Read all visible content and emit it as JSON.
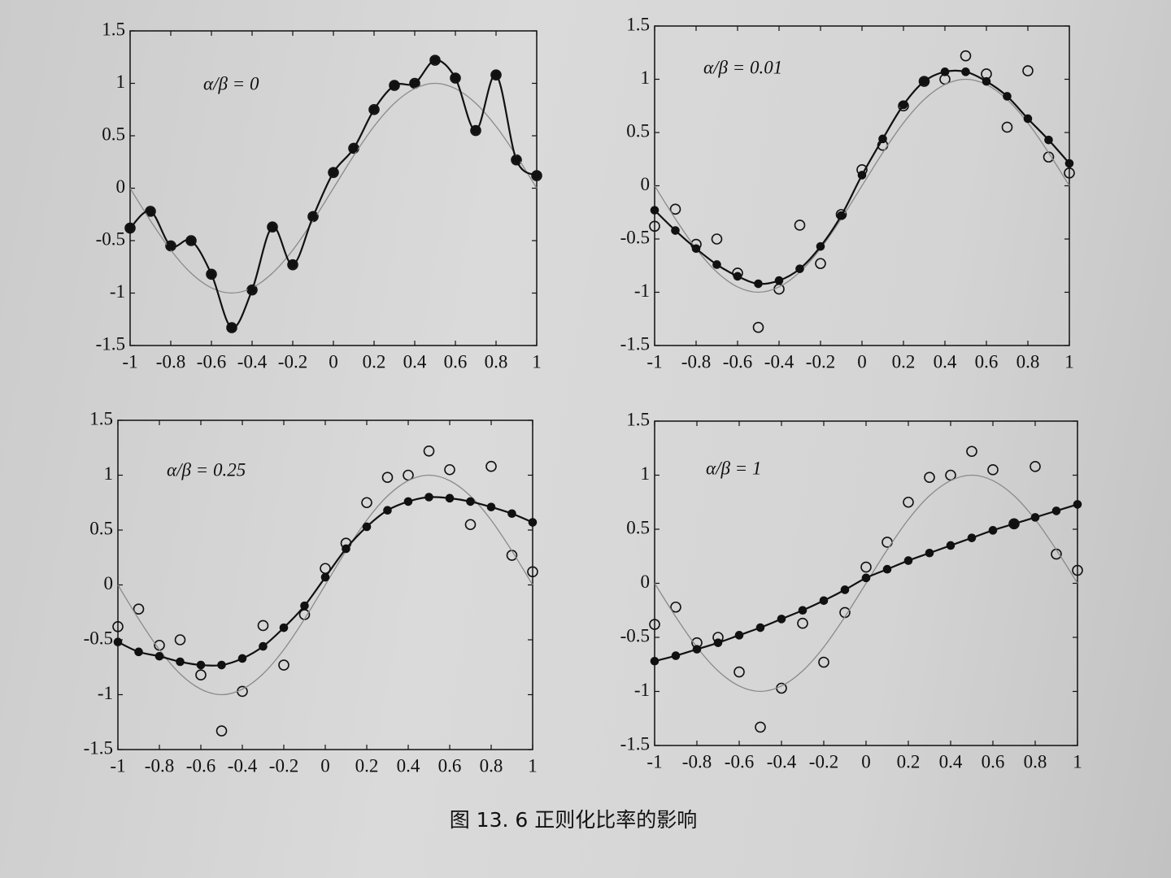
{
  "chart_data": [
    {
      "type": "line",
      "annotation": "α/β = 0",
      "x": [
        -1,
        -0.9,
        -0.8,
        -0.7,
        -0.6,
        -0.5,
        -0.4,
        -0.3,
        -0.2,
        -0.1,
        0,
        0.1,
        0.2,
        0.3,
        0.4,
        0.5,
        0.6,
        0.7,
        0.8,
        0.9,
        1
      ],
      "series": [
        {
          "color": "#111111",
          "marker": "open",
          "line": false,
          "values": [
            -0.38,
            -0.22,
            -0.55,
            -0.5,
            -0.82,
            -1.33,
            -0.97,
            -0.37,
            -0.73,
            -0.27,
            0.15,
            0.38,
            0.75,
            0.98,
            1.0,
            1.22,
            1.05,
            0.55,
            1.08,
            0.27,
            0.12
          ]
        },
        {
          "color": "#8a8a8a",
          "marker": "none",
          "line": true,
          "values": [
            0,
            -0.31,
            -0.59,
            -0.81,
            -0.95,
            -1,
            -0.95,
            -0.81,
            -0.59,
            -0.31,
            0,
            0.31,
            0.59,
            0.81,
            0.95,
            1,
            0.95,
            0.81,
            0.59,
            0.31,
            0
          ]
        },
        {
          "color": "#111111",
          "marker": "filled",
          "line": true,
          "values": [
            -0.38,
            -0.22,
            -0.55,
            -0.5,
            -0.82,
            -1.33,
            -0.97,
            -0.37,
            -0.73,
            -0.27,
            0.15,
            0.38,
            0.75,
            0.98,
            1.0,
            1.22,
            1.05,
            0.55,
            1.08,
            0.27,
            0.12
          ]
        }
      ],
      "xlim": [
        -1,
        1
      ],
      "ylim": [
        -1.5,
        1.5
      ],
      "xticks": [
        -1,
        -0.8,
        -0.6,
        -0.4,
        -0.2,
        0,
        0.2,
        0.4,
        0.6,
        0.8,
        1
      ],
      "yticks": [
        -1.5,
        -1,
        -0.5,
        0,
        0.5,
        1,
        1.5
      ]
    },
    {
      "type": "line",
      "annotation": "α/β = 0.01",
      "x": [
        -1,
        -0.9,
        -0.8,
        -0.7,
        -0.6,
        -0.5,
        -0.4,
        -0.3,
        -0.2,
        -0.1,
        0,
        0.1,
        0.2,
        0.3,
        0.4,
        0.5,
        0.6,
        0.7,
        0.8,
        0.9,
        1
      ],
      "series": [
        {
          "color": "#111111",
          "marker": "open",
          "line": false,
          "values": [
            -0.38,
            -0.22,
            -0.55,
            -0.5,
            -0.82,
            -1.33,
            -0.97,
            -0.37,
            -0.73,
            -0.27,
            0.15,
            0.38,
            0.75,
            0.98,
            1.0,
            1.22,
            1.05,
            0.55,
            1.08,
            0.27,
            0.12
          ]
        },
        {
          "color": "#8a8a8a",
          "marker": "none",
          "line": true,
          "values": [
            0,
            -0.31,
            -0.59,
            -0.81,
            -0.95,
            -1,
            -0.95,
            -0.81,
            -0.59,
            -0.31,
            0,
            0.31,
            0.59,
            0.81,
            0.95,
            1,
            0.95,
            0.81,
            0.59,
            0.31,
            0
          ]
        },
        {
          "color": "#111111",
          "marker": "filled",
          "line": true,
          "values": [
            -0.23,
            -0.42,
            -0.59,
            -0.74,
            -0.85,
            -0.92,
            -0.89,
            -0.78,
            -0.57,
            -0.28,
            0.1,
            0.44,
            0.76,
            0.98,
            1.07,
            1.07,
            0.98,
            0.84,
            0.63,
            0.43,
            0.21
          ]
        }
      ],
      "xlim": [
        -1,
        1
      ],
      "ylim": [
        -1.5,
        1.5
      ],
      "xticks": [
        -1,
        -0.8,
        -0.6,
        -0.4,
        -0.2,
        0,
        0.2,
        0.4,
        0.6,
        0.8,
        1
      ],
      "yticks": [
        -1.5,
        -1,
        -0.5,
        0,
        0.5,
        1,
        1.5
      ]
    },
    {
      "type": "line",
      "annotation": "α/β = 0.25",
      "x": [
        -1,
        -0.9,
        -0.8,
        -0.7,
        -0.6,
        -0.5,
        -0.4,
        -0.3,
        -0.2,
        -0.1,
        0,
        0.1,
        0.2,
        0.3,
        0.4,
        0.5,
        0.6,
        0.7,
        0.8,
        0.9,
        1
      ],
      "series": [
        {
          "color": "#111111",
          "marker": "open",
          "line": false,
          "values": [
            -0.38,
            -0.22,
            -0.55,
            -0.5,
            -0.82,
            -1.33,
            -0.97,
            -0.37,
            -0.73,
            -0.27,
            0.15,
            0.38,
            0.75,
            0.98,
            1.0,
            1.22,
            1.05,
            0.55,
            1.08,
            0.27,
            0.12
          ]
        },
        {
          "color": "#8a8a8a",
          "marker": "none",
          "line": true,
          "values": [
            0,
            -0.31,
            -0.59,
            -0.81,
            -0.95,
            -1,
            -0.95,
            -0.81,
            -0.59,
            -0.31,
            0,
            0.31,
            0.59,
            0.81,
            0.95,
            1,
            0.95,
            0.81,
            0.59,
            0.31,
            0
          ]
        },
        {
          "color": "#111111",
          "marker": "filled",
          "line": true,
          "values": [
            -0.52,
            -0.61,
            -0.65,
            -0.7,
            -0.73,
            -0.73,
            -0.67,
            -0.56,
            -0.39,
            -0.19,
            0.07,
            0.33,
            0.53,
            0.68,
            0.76,
            0.8,
            0.79,
            0.76,
            0.71,
            0.65,
            0.57
          ]
        }
      ],
      "xlim": [
        -1,
        1
      ],
      "ylim": [
        -1.5,
        1.5
      ],
      "xticks": [
        -1,
        -0.8,
        -0.6,
        -0.4,
        -0.2,
        0,
        0.2,
        0.4,
        0.6,
        0.8,
        1
      ],
      "yticks": [
        -1.5,
        -1,
        -0.5,
        0,
        0.5,
        1,
        1.5
      ]
    },
    {
      "type": "line",
      "annotation": "α/β = 1",
      "x": [
        -1,
        -0.9,
        -0.8,
        -0.7,
        -0.6,
        -0.5,
        -0.4,
        -0.3,
        -0.2,
        -0.1,
        0,
        0.1,
        0.2,
        0.3,
        0.4,
        0.5,
        0.6,
        0.7,
        0.8,
        0.9,
        1
      ],
      "series": [
        {
          "color": "#111111",
          "marker": "open",
          "line": false,
          "values": [
            -0.38,
            -0.22,
            -0.55,
            -0.5,
            -0.82,
            -1.33,
            -0.97,
            -0.37,
            -0.73,
            -0.27,
            0.15,
            0.38,
            0.75,
            0.98,
            1.0,
            1.22,
            1.05,
            0.55,
            1.08,
            0.27,
            0.12
          ]
        },
        {
          "color": "#8a8a8a",
          "marker": "none",
          "line": true,
          "values": [
            0,
            -0.31,
            -0.59,
            -0.81,
            -0.95,
            -1,
            -0.95,
            -0.81,
            -0.59,
            -0.31,
            0,
            0.31,
            0.59,
            0.81,
            0.95,
            1,
            0.95,
            0.81,
            0.59,
            0.31,
            0
          ]
        },
        {
          "color": "#111111",
          "marker": "filled",
          "line": true,
          "values": [
            -0.72,
            -0.67,
            -0.61,
            -0.55,
            -0.48,
            -0.41,
            -0.33,
            -0.25,
            -0.16,
            -0.06,
            0.05,
            0.13,
            0.21,
            0.28,
            0.35,
            0.42,
            0.49,
            0.55,
            0.61,
            0.67,
            0.73
          ]
        }
      ],
      "xlim": [
        -1,
        1
      ],
      "ylim": [
        -1.5,
        1.5
      ],
      "xticks": [
        -1,
        -0.8,
        -0.6,
        -0.4,
        -0.2,
        0,
        0.2,
        0.4,
        0.6,
        0.8,
        1
      ],
      "yticks": [
        -1.5,
        -1,
        -0.5,
        0,
        0.5,
        1,
        1.5
      ]
    }
  ],
  "caption": "图 13. 6   正则化比率的影响"
}
